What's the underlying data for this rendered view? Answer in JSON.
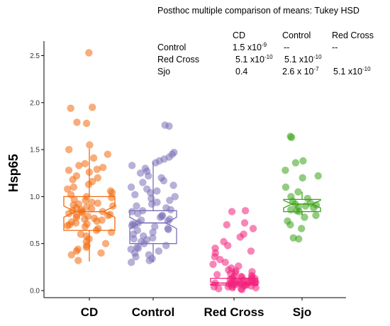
{
  "posthoc": {
    "title": "Posthoc multiple comparison of means: Tukey  HSD",
    "col_headers": [
      "CD",
      "Control",
      "Red Cross"
    ],
    "rows": [
      {
        "label": "Control",
        "cells": [
          {
            "base": "1.5 x10",
            "exp": "-9"
          },
          {
            "base": "--",
            "exp": ""
          },
          {
            "base": "--",
            "exp": ""
          }
        ]
      },
      {
        "label": "Red Cross",
        "cells": [
          {
            "base": "5.1 x10",
            "exp": "-10"
          },
          {
            "base": "5.1 x10",
            "exp": "-10"
          },
          {
            "base": "",
            "exp": ""
          }
        ]
      },
      {
        "label": "Sjo",
        "cells": [
          {
            "base": "0.4",
            "exp": ""
          },
          {
            "base": "2.6 x 10",
            "exp": "-7"
          },
          {
            "base": "5.1 x10",
            "exp": "-10"
          }
        ]
      }
    ]
  },
  "chart_data": {
    "type": "box+jitter",
    "title": "",
    "xlabel": "",
    "ylabel": "Hsp65",
    "ylim": [
      0,
      2.6
    ],
    "yticks": [
      "0.0",
      "0.5",
      "1.0",
      "1.5",
      "2.0",
      "2.5"
    ],
    "categories": [
      "CD",
      "Control",
      "Red Cross",
      "Sjo"
    ],
    "colors": [
      "#f26a0d",
      "#7b6fb8",
      "#f2217c",
      "#3aa318"
    ],
    "boxes": [
      {
        "name": "CD",
        "q1": 0.64,
        "median": 0.84,
        "q3": 1.0,
        "notch_low": 0.78,
        "notch_high": 0.9,
        "whisker_low": 0.31,
        "whisker_high": 1.51
      },
      {
        "name": "Control",
        "q1": 0.5,
        "median": 0.72,
        "q3": 0.85,
        "notch_low": 0.66,
        "notch_high": 0.78,
        "whisker_low": 0.3,
        "whisker_high": 1.37
      },
      {
        "name": "Red Cross",
        "q1": 0.06,
        "median": 0.08,
        "q3": 0.13,
        "notch_low": 0.07,
        "notch_high": 0.09,
        "whisker_low": 0.0,
        "whisker_high": 0.23
      },
      {
        "name": "Sjo",
        "q1": 0.84,
        "median": 0.92,
        "q3": 0.97,
        "notch_low": 0.88,
        "notch_high": 0.96,
        "whisker_low": 0.8,
        "whisker_high": 1.05
      }
    ],
    "points": [
      [
        2.53,
        1.95,
        1.94,
        1.79,
        1.78,
        1.55,
        1.5,
        1.45,
        1.41,
        1.35,
        1.33,
        1.31,
        1.29,
        1.28,
        1.26,
        1.22,
        1.2,
        1.18,
        1.16,
        1.13,
        1.1,
        1.08,
        1.06,
        1.04,
        1.02,
        1.0,
        0.99,
        0.97,
        0.96,
        0.94,
        0.93,
        0.92,
        0.91,
        0.9,
        0.89,
        0.88,
        0.87,
        0.86,
        0.85,
        0.84,
        0.84,
        0.83,
        0.82,
        0.81,
        0.8,
        0.8,
        0.79,
        0.78,
        0.77,
        0.76,
        0.75,
        0.74,
        0.73,
        0.72,
        0.71,
        0.7,
        0.69,
        0.68,
        0.66,
        0.64,
        0.62,
        0.6,
        0.58,
        0.55,
        0.52,
        0.5,
        0.48,
        0.46,
        0.44,
        0.42,
        0.4,
        0.38,
        0.32
      ],
      [
        1.76,
        1.75,
        1.47,
        1.45,
        1.42,
        1.4,
        1.38,
        1.36,
        1.33,
        1.3,
        1.27,
        1.25,
        1.22,
        1.2,
        1.17,
        1.15,
        1.12,
        1.1,
        1.08,
        1.06,
        1.04,
        1.02,
        1.0,
        0.98,
        0.96,
        0.94,
        0.92,
        0.9,
        0.88,
        0.86,
        0.85,
        0.84,
        0.82,
        0.8,
        0.79,
        0.78,
        0.76,
        0.75,
        0.74,
        0.72,
        0.71,
        0.7,
        0.69,
        0.68,
        0.66,
        0.65,
        0.64,
        0.62,
        0.6,
        0.58,
        0.56,
        0.55,
        0.54,
        0.52,
        0.5,
        0.48,
        0.46,
        0.45,
        0.44,
        0.42,
        0.4,
        0.38,
        0.36,
        0.34,
        0.32,
        0.3
      ],
      [
        0.85,
        0.84,
        0.72,
        0.7,
        0.66,
        0.6,
        0.57,
        0.52,
        0.48,
        0.45,
        0.42,
        0.4,
        0.36,
        0.33,
        0.3,
        0.28,
        0.26,
        0.24,
        0.22,
        0.21,
        0.2,
        0.19,
        0.18,
        0.17,
        0.16,
        0.15,
        0.15,
        0.14,
        0.14,
        0.13,
        0.13,
        0.12,
        0.12,
        0.11,
        0.11,
        0.1,
        0.1,
        0.1,
        0.09,
        0.09,
        0.09,
        0.08,
        0.08,
        0.08,
        0.07,
        0.07,
        0.07,
        0.06,
        0.06,
        0.06,
        0.05,
        0.05,
        0.05,
        0.04,
        0.04,
        0.03,
        0.03,
        0.02,
        0.02,
        0.01
      ],
      [
        1.64,
        1.63,
        1.38,
        1.36,
        1.28,
        1.22,
        1.2,
        1.1,
        1.05,
        1.0,
        0.98,
        0.95,
        0.93,
        0.92,
        0.91,
        0.9,
        0.89,
        0.88,
        0.86,
        0.85,
        0.84,
        0.8,
        0.78,
        0.74,
        0.7,
        0.66,
        0.56,
        0.55
      ]
    ]
  }
}
